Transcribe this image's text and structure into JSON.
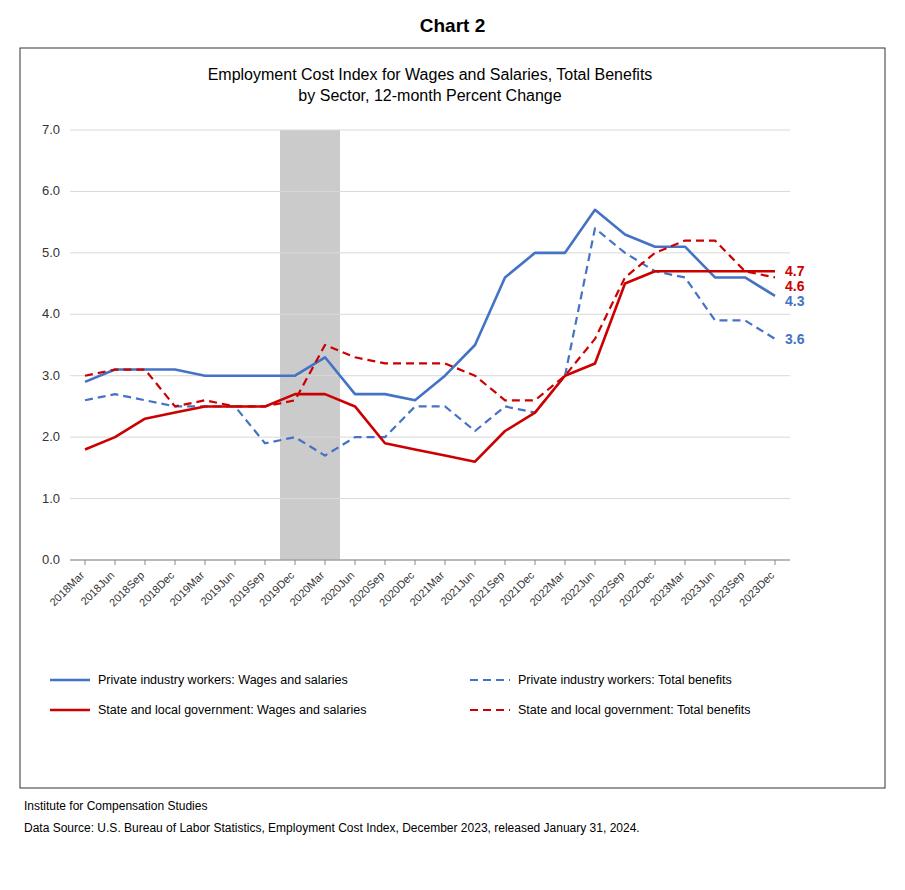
{
  "chart_data": {
    "type": "line",
    "title": "Chart 2",
    "subtitle": "Employment Cost Index for Wages and Salaries, Total Benefits\nby Sector, 12-month Percent Change",
    "categories": [
      "2018Mar",
      "2018Jun",
      "2018Sep",
      "2018Dec",
      "2019Mar",
      "2019Jun",
      "2019Sep",
      "2019Dec",
      "2020Mar",
      "2020Jun",
      "2020Sep",
      "2020Dec",
      "2021Mar",
      "2021Jun",
      "2021Sep",
      "2021Dec",
      "2022Mar",
      "2022Jun",
      "2022Sep",
      "2022Dec",
      "2023Mar",
      "2023Jun",
      "2023Sep",
      "2023Dec"
    ],
    "series": [
      {
        "name": "Private industry workers: Wages and salaries",
        "color": "#4472C4",
        "line_style": "solid",
        "values": [
          2.9,
          3.1,
          3.1,
          3.1,
          3.0,
          3.0,
          3.0,
          3.0,
          3.3,
          2.7,
          2.7,
          2.6,
          3.0,
          3.5,
          4.6,
          5.0,
          5.0,
          5.7,
          5.3,
          5.1,
          5.1,
          4.6,
          4.6,
          4.3
        ]
      },
      {
        "name": "Private industry workers: Total benefits",
        "color": "#4472C4",
        "line_style": "dashed",
        "values": [
          2.6,
          2.7,
          2.6,
          2.5,
          2.5,
          2.5,
          1.9,
          2.0,
          1.7,
          2.0,
          2.0,
          2.5,
          2.5,
          2.1,
          2.5,
          2.4,
          3.0,
          5.4,
          5.0,
          4.7,
          4.6,
          3.9,
          3.9,
          3.6
        ]
      },
      {
        "name": "State and local government: Wages and salaries",
        "color": "#CC0000",
        "line_style": "solid",
        "values": [
          1.8,
          2.0,
          2.3,
          2.4,
          2.5,
          2.5,
          2.5,
          2.7,
          2.7,
          2.5,
          1.9,
          1.8,
          1.7,
          1.6,
          2.1,
          2.4,
          3.0,
          3.2,
          4.5,
          4.7,
          4.7,
          4.7,
          4.7,
          4.7
        ]
      },
      {
        "name": "State and local government: Total benefits",
        "color": "#CC0000",
        "line_style": "dashed",
        "values": [
          3.0,
          3.1,
          3.1,
          2.5,
          2.6,
          2.5,
          2.5,
          2.6,
          3.5,
          3.3,
          3.2,
          3.2,
          3.2,
          3.0,
          2.6,
          2.6,
          3.0,
          3.6,
          4.6,
          5.0,
          5.2,
          5.2,
          4.7,
          4.6
        ]
      }
    ],
    "ylim": [
      0.0,
      7.0
    ],
    "yticks": [
      {
        "value": 0,
        "label": "0.0"
      },
      {
        "value": 1,
        "label": "1.0"
      },
      {
        "value": 2,
        "label": "2.0"
      },
      {
        "value": 3,
        "label": "3.0"
      },
      {
        "value": 4,
        "label": "4.0"
      },
      {
        "value": 5,
        "label": "5.0"
      },
      {
        "value": 6,
        "label": "6.0"
      },
      {
        "value": 7,
        "label": "7.0"
      }
    ],
    "grid": true,
    "shaded_ranges": [
      {
        "from": "2019Dec",
        "to": "2020Mar",
        "color": "#A9A9A9"
      }
    ],
    "annotations": [
      {
        "x": "2023Dec",
        "y": 4.7,
        "text": "4.7",
        "color": "#CC0000"
      },
      {
        "x": "2023Dec",
        "y": 4.6,
        "text": "4.6",
        "color": "#CC0000"
      },
      {
        "x": "2023Dec",
        "y": 4.3,
        "text": "4.3",
        "color": "#4472C4"
      },
      {
        "x": "2023Dec",
        "y": 3.6,
        "text": "3.6",
        "color": "#4472C4"
      }
    ],
    "footer": [
      "Institute for Compensation Studies",
      "Data Source: U.S. Bureau of Labor Statistics, Employment Cost Index, December 2023, released January 31, 2024."
    ]
  }
}
